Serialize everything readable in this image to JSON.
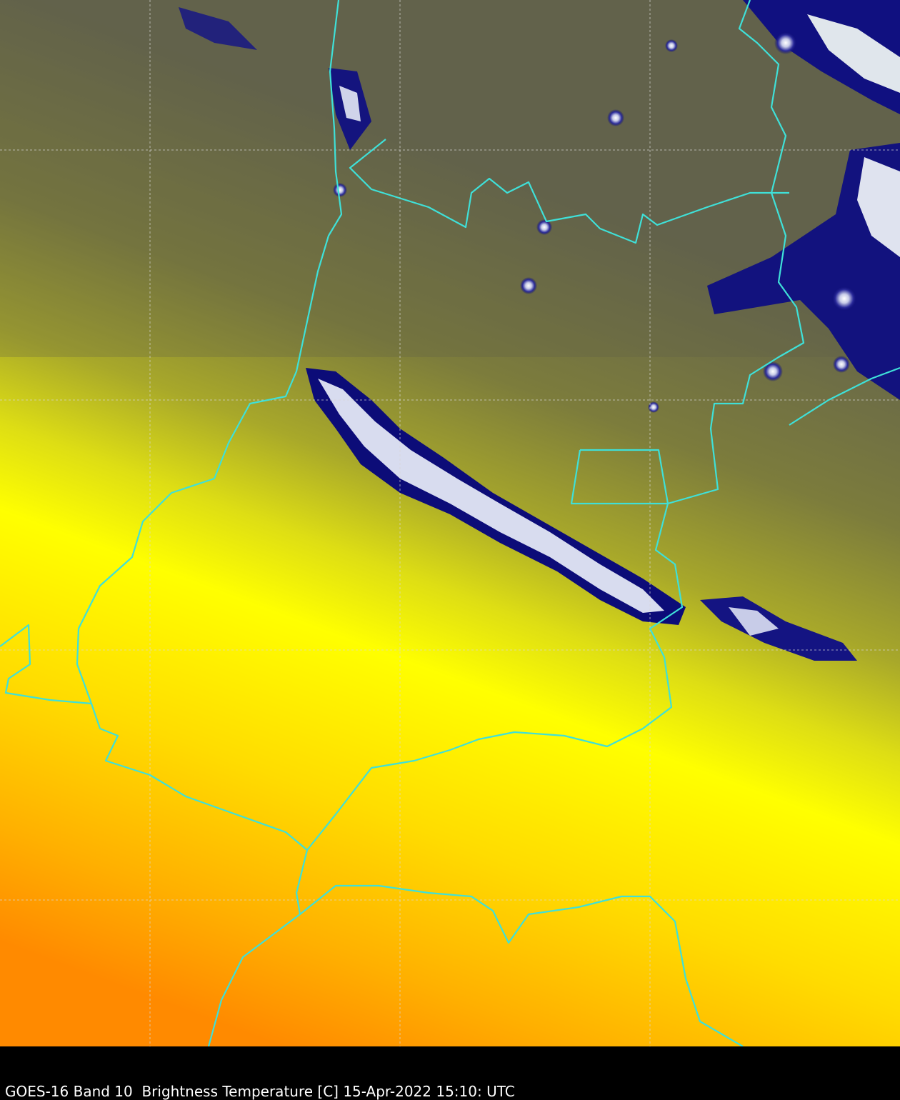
{
  "caption": "GOES-16 Band 10  Brightness Temperature [C] 15-Apr-2022 15:10: UTC"
}
